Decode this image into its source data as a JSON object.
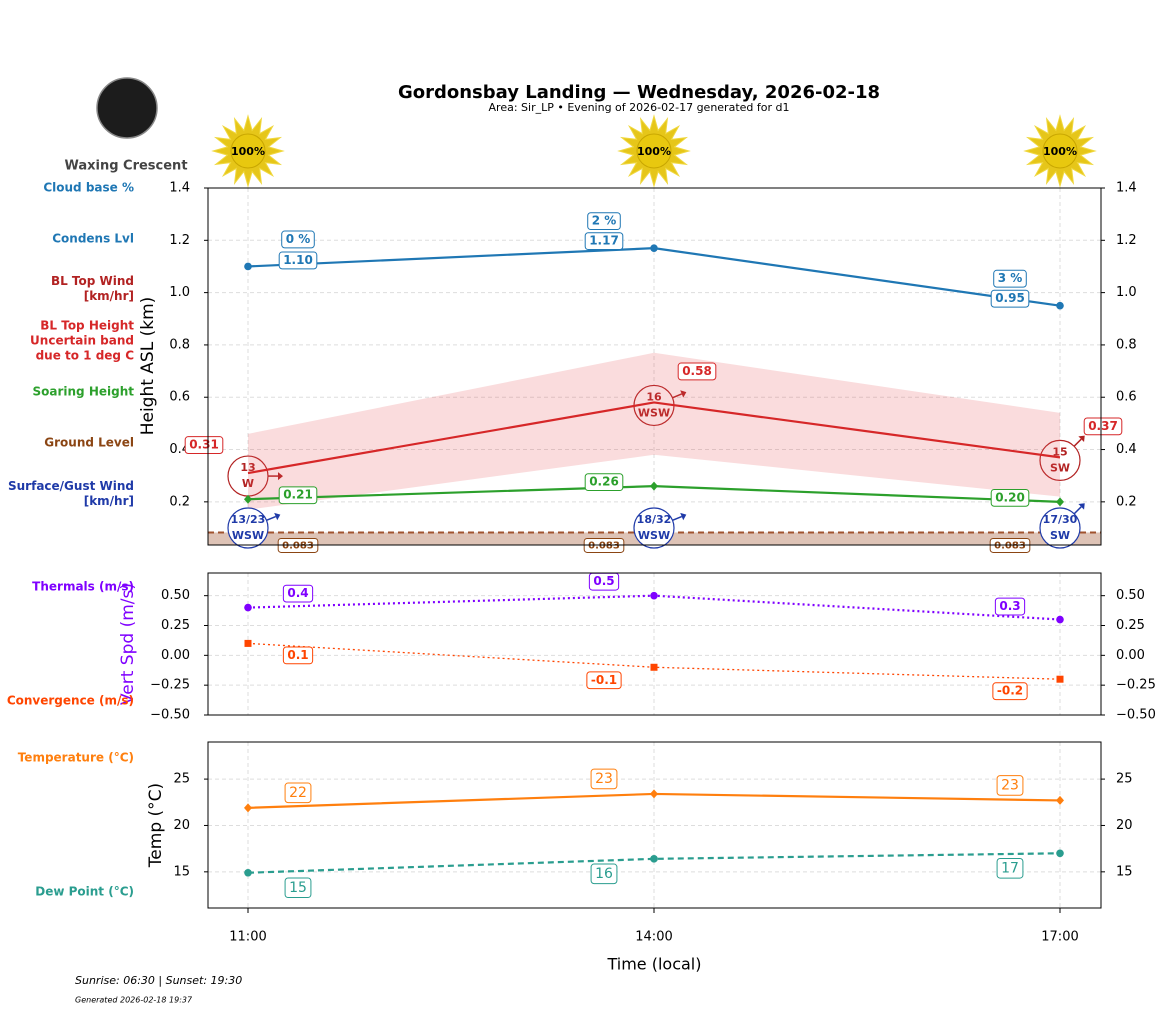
{
  "header": {
    "title": "Gordonsbay Landing — Wednesday, 2026-02-18",
    "subtitle": "Area: Sir_LP • Evening of 2026-02-17 generated for d1",
    "moon_phase": "Waxing Crescent"
  },
  "sunshine": {
    "values": [
      100,
      100,
      100
    ],
    "value_labels": [
      "100%",
      "100%",
      "100%"
    ]
  },
  "footer": {
    "sun_times": "Sunrise: 06:30 | Sunset: 19:30",
    "generated": "Generated 2026-02-18 19:37"
  },
  "chart_data": [
    {
      "type": "line",
      "ylabel": "Height ASL (km)",
      "ylim": [
        0.035,
        1.4
      ],
      "yticks": [
        0.2,
        0.4,
        0.6,
        0.8,
        {
          "value": 1,
          "label": "1.0"
        },
        1.2,
        1.4
      ],
      "grid": true,
      "series": [
        {
          "name": "Cloud base %",
          "kind": "annotation",
          "color": "#1f77b4",
          "values": [
            0,
            2,
            3
          ],
          "value_labels": [
            "0 %",
            "2 %",
            "3 %"
          ]
        },
        {
          "name": "Condens Lvl",
          "kind": "line",
          "color": "#1f77b4",
          "marker": "o",
          "linestyle": "solid",
          "values": [
            1.1,
            1.17,
            0.95
          ],
          "value_labels": [
            "1.10",
            "1.17",
            "0.95"
          ]
        },
        {
          "name": "BL Top Wind\n[km/hr]",
          "kind": "wind",
          "color": "#b22222",
          "values": [
            13,
            16,
            15
          ],
          "directions": [
            "W",
            "WSW",
            "SW"
          ]
        },
        {
          "name": "BL Top Height\nUncertain band\ndue to 1 deg C",
          "kind": "line",
          "color": "#d62728",
          "marker": "none",
          "linestyle": "solid",
          "values": [
            0.31,
            0.58,
            0.37
          ],
          "band_low": [
            0.17,
            0.38,
            0.22
          ],
          "band_high": [
            0.46,
            0.77,
            0.54
          ]
        },
        {
          "name": "Soaring Height",
          "kind": "line",
          "color": "#2ca02c",
          "marker": "D",
          "linestyle": "solid",
          "values": [
            0.21,
            0.26,
            0.2
          ],
          "value_labels": [
            "0.21",
            "0.26",
            "0.20"
          ]
        },
        {
          "name": "Ground Level",
          "kind": "ground",
          "color": "#8b4513",
          "values": [
            0.083,
            0.083,
            0.083
          ]
        },
        {
          "name": "Surface/Gust Wind\n[km/hr]",
          "kind": "wind",
          "color": "#1f3aa8",
          "values": [
            13,
            18,
            17
          ],
          "gusts": [
            23,
            32,
            30
          ],
          "value_labels": [
            "13/23",
            "18/32",
            "17/30"
          ],
          "directions": [
            "WSW",
            "WSW",
            "SW"
          ]
        }
      ]
    },
    {
      "type": "line",
      "ylabel": "Vert Spd (m/s)",
      "ylabel_color": "#7f00ff",
      "ylim": [
        -0.5,
        0.69
      ],
      "yticks": [
        {
          "value": -0.5,
          "label": "−0.50"
        },
        {
          "value": -0.25,
          "label": "−0.25"
        },
        {
          "value": 0,
          "label": "0.00"
        },
        0.25,
        {
          "value": 0.5,
          "label": "0.50"
        }
      ],
      "grid": true,
      "series": [
        {
          "name": "Thermals (m/s)",
          "kind": "line",
          "color": "#7f00ff",
          "marker": "o",
          "linestyle": "dotted",
          "values": [
            0.4,
            0.5,
            0.3
          ]
        },
        {
          "name": "Convergence (m/s)",
          "kind": "line",
          "color": "#ff4500",
          "marker": "s",
          "linestyle": "dotted",
          "values": [
            0.1,
            -0.1,
            -0.2
          ]
        }
      ]
    },
    {
      "type": "line",
      "ylabel": "Temp (°C)",
      "ylim": [
        11.1,
        29
      ],
      "yticks": [
        15,
        20,
        25
      ],
      "grid": true,
      "categories": [
        "11:00",
        "14:00",
        "17:00"
      ],
      "xlabel": "Time (local)",
      "series": [
        {
          "name": "Temperature (°C)",
          "kind": "line",
          "color": "#ff7f0e",
          "marker": "D",
          "linestyle": "solid",
          "values": [
            21.9,
            23.4,
            22.7
          ],
          "value_labels": [
            "22",
            "23",
            "23"
          ]
        },
        {
          "name": "Dew Point (°C)",
          "kind": "line",
          "color": "#2a9d8f",
          "marker": "o",
          "linestyle": "dashed",
          "values": [
            14.9,
            16.4,
            17.0
          ],
          "value_labels": [
            "15",
            "16",
            "17"
          ]
        }
      ]
    }
  ]
}
